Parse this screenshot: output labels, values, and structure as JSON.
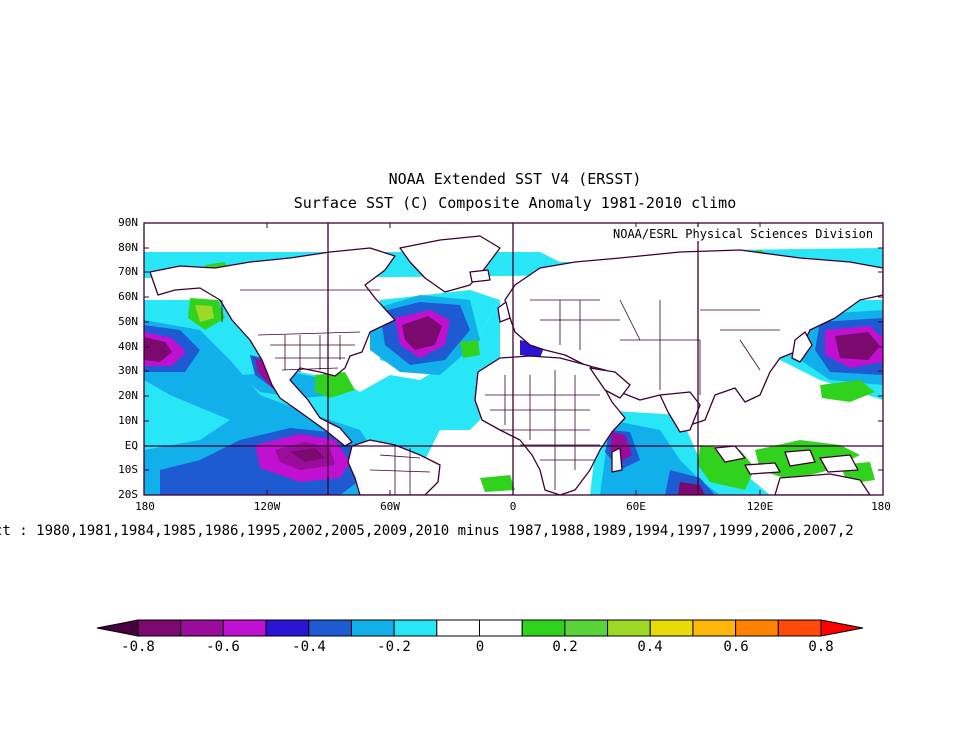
{
  "figure": {
    "title_line1": "NOAA Extended SST V4 (ERSST)",
    "title_line2": "Surface SST (C) Composite Anomaly 1981-2010 climo",
    "credit": "NOAA/ESRL Physical Sciences Division",
    "years_text": "ct : 1980,1981,1984,1985,1986,1995,2002,2005,2009,2010 minus 1987,1988,1989,1994,1997,1999,2006,2007,2"
  },
  "axes": {
    "lat_labels": [
      "90N",
      "80N",
      "70N",
      "60N",
      "50N",
      "40N",
      "30N",
      "20N",
      "10N",
      "EQ",
      "10S",
      "20S"
    ],
    "lon_labels": [
      "180",
      "120W",
      "60W",
      "0",
      "60E",
      "120E",
      "180"
    ]
  },
  "colorbar": {
    "labels": [
      "-0.8",
      "-0.6",
      "-0.4",
      "-0.2",
      "0",
      "0.2",
      "0.4",
      "0.6",
      "0.8"
    ],
    "low_arrow_color": "#4a0040",
    "high_arrow_color": "#ff0000",
    "colors": [
      "#7a0a6e",
      "#9a0c9a",
      "#c010d0",
      "#2a14d4",
      "#1e5ad2",
      "#12b0ea",
      "#28e6f6",
      "#ffffff",
      "#ffffff",
      "#30d21e",
      "#5ad23a",
      "#a0d828",
      "#e6dc0a",
      "#ffb80a",
      "#ff8200",
      "#ff4a0a"
    ]
  },
  "colors": {
    "coast": "#3c0030",
    "grid": "#3c0030",
    "anom_n08": "#7a0a6e",
    "anom_n07": "#9a0c9a",
    "anom_n06": "#c010d0",
    "anom_n05": "#2a14d4",
    "anom_n04": "#1e5ad2",
    "anom_n03": "#12b0ea",
    "anom_n02": "#28e6f6",
    "anom_p02": "#30d21e",
    "anom_p03": "#5ad23a"
  }
}
